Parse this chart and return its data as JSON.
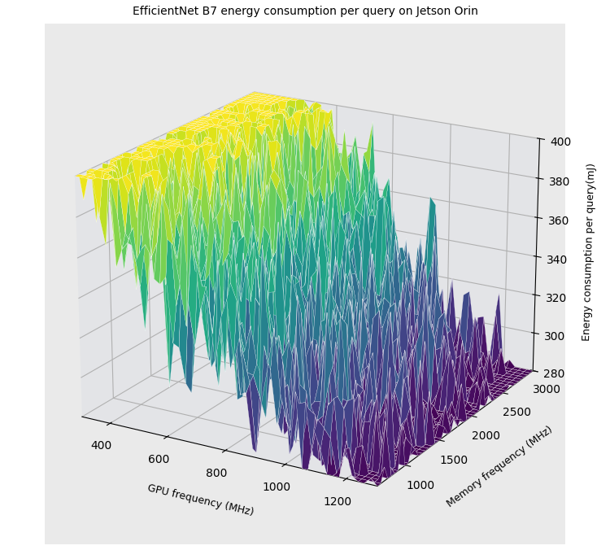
{
  "title": "EfficientNet B7 energy consumption per query on Jetson Orin",
  "xlabel": "GPU frequency (MHz)",
  "ylabel": "Memory frequency (MHz)",
  "zlabel": "Energy consumption per query(mJ)",
  "gpu_freq_min": 300,
  "gpu_freq_max": 1300,
  "mem_freq_min": 600,
  "mem_freq_max": 3000,
  "energy_min": 280,
  "energy_max": 400,
  "colormap": "viridis",
  "figsize": [
    7.5,
    6.76
  ],
  "dpi": 100,
  "n_gpu": 50,
  "n_mem": 50,
  "seed": 42,
  "background_color": "#eaeaea",
  "elev": 20,
  "azim": -60
}
